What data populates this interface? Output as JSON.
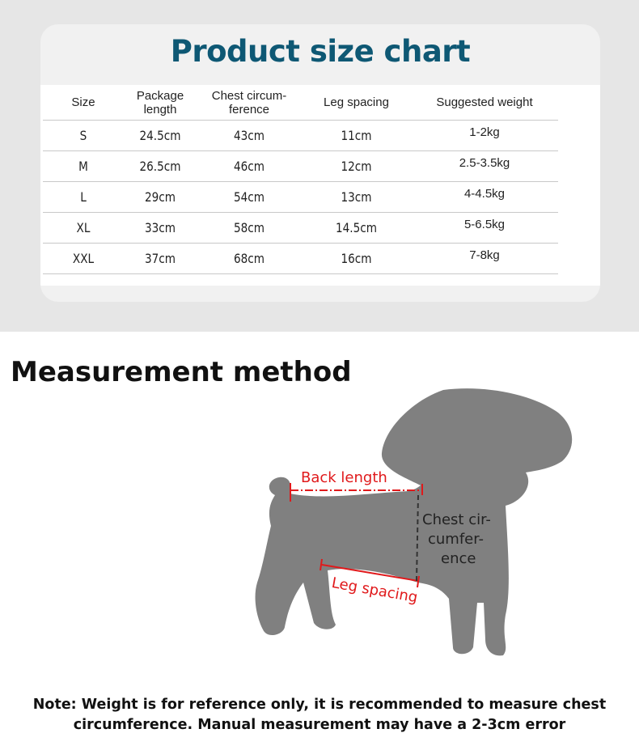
{
  "size_chart": {
    "title": "Product size chart",
    "headers": [
      "Size",
      "Package length",
      "Chest circum-ference",
      "Leg spacing",
      "Suggested weight"
    ],
    "rows": [
      [
        "S",
        "24.5cm",
        "43cm",
        "11cm",
        "1-2kg"
      ],
      [
        "M",
        "26.5cm",
        "46cm",
        "12cm",
        "2.5-3.5kg"
      ],
      [
        "L",
        "29cm",
        "54cm",
        "13cm",
        "4-4.5kg"
      ],
      [
        "XL",
        "33cm",
        "58cm",
        "14.5cm",
        "5-6.5kg"
      ],
      [
        "XXL",
        "37cm",
        "68cm",
        "16cm",
        "7-8kg"
      ]
    ]
  },
  "measurement": {
    "heading": "Measurement method",
    "labels": {
      "back_length": "Back length",
      "chest_l1": "Chest cir-",
      "chest_l2": "cumfer-",
      "chest_l3": "ence",
      "leg_spacing": "Leg spacing"
    },
    "colors": {
      "silhouette": "#808080",
      "marker": "#e0191b",
      "title": "#0e5874"
    }
  },
  "note": {
    "line1": "Note: Weight is for reference only, it is recommended to measure chest",
    "line2": "circumference. Manual measurement may have a 2-3cm error"
  }
}
